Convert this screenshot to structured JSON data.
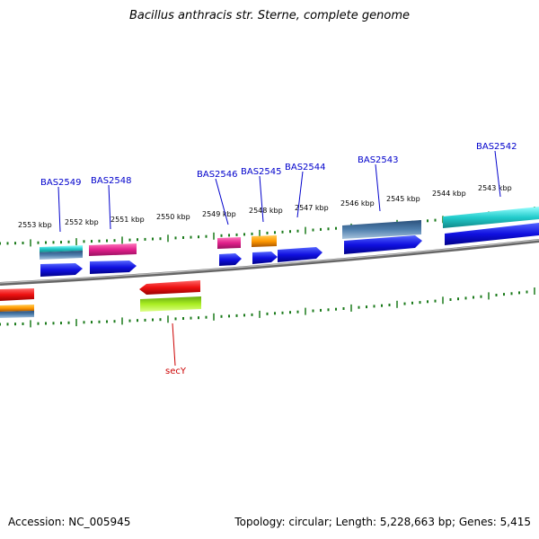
{
  "title": "Bacillus anthracis str. Sterne, complete genome",
  "footer": {
    "accession": "Accession: NC_005945",
    "summary": "Topology: circular; Length: 5,228,663 bp; Genes: 5,415"
  },
  "scale_labels": [
    "2553 kbp",
    "2552 kbp",
    "2551 kbp",
    "2550 kbp",
    "2549 kbp",
    "2548 kbp",
    "2547 kbp",
    "2546 kbp",
    "2545 kbp",
    "2544 kbp",
    "2543 kbp"
  ],
  "gene_labels": [
    "BAS2549",
    "BAS2548",
    "BAS2546",
    "BAS2545",
    "BAS2544",
    "BAS2543",
    "BAS2542",
    "secY"
  ],
  "colors": {
    "backbone": "#808080",
    "ticks": "#1a7a1a",
    "cyan": "#22cccc",
    "magenta": "#e0208a",
    "blue": "#1010e0",
    "orange": "#ff9900",
    "steelblue": "#4f7fad",
    "red": "#ee1111",
    "lime": "#aaee22"
  }
}
